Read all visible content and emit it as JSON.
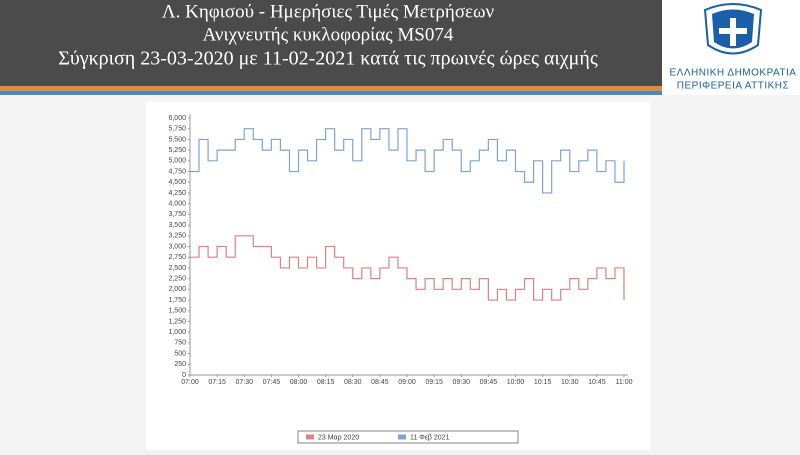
{
  "header": {
    "title_lines": [
      "Λ. Κηφισού - Ημερήσιες Τιμές Μετρήσεων",
      "Ανιχνευτής κυκλοφορίας MS074",
      "Σύγκριση 23-03-2020 με 11-02-2021 κατά τις πρωινές ώρες αιχμής"
    ]
  },
  "logo": {
    "lines": [
      "ΕΛΛΗΝΙΚΗ ΔΗΜΟΚΡΑΤΙΑ",
      "ΠΕΡΙΦΕΡΕΙΑ ΑΤΤΙΚΗΣ"
    ]
  },
  "chart_data": {
    "type": "line",
    "step": true,
    "grid": false,
    "x": [
      "07:00",
      "07:05",
      "07:10",
      "07:15",
      "07:20",
      "07:25",
      "07:30",
      "07:35",
      "07:40",
      "07:45",
      "07:50",
      "07:55",
      "08:00",
      "08:05",
      "08:10",
      "08:15",
      "08:20",
      "08:25",
      "08:30",
      "08:35",
      "08:40",
      "08:45",
      "08:50",
      "08:55",
      "09:00",
      "09:05",
      "09:10",
      "09:15",
      "09:20",
      "09:25",
      "09:30",
      "09:35",
      "09:40",
      "09:45",
      "09:50",
      "09:55",
      "10:00",
      "10:05",
      "10:10",
      "10:15",
      "10:20",
      "10:25",
      "10:30",
      "10:35",
      "10:40",
      "10:45",
      "10:50",
      "10:55",
      "11:00"
    ],
    "xlim": [
      "07:00",
      "11:00"
    ],
    "xticks": [
      "07:00",
      "07:15",
      "07:30",
      "07:45",
      "08:00",
      "08:15",
      "08:30",
      "08:45",
      "09:00",
      "09:15",
      "09:30",
      "09:45",
      "10:00",
      "10:15",
      "10:30",
      "10:45",
      "11:00"
    ],
    "ylim": [
      0,
      6000
    ],
    "yticks": [
      0,
      250,
      500,
      750,
      {
        "value": 1000,
        "label": "1,000"
      },
      {
        "value": 1250,
        "label": "1,250"
      },
      {
        "value": 1500,
        "label": "1,500"
      },
      {
        "value": 1750,
        "label": "1,750"
      },
      {
        "value": 2000,
        "label": "2,000"
      },
      {
        "value": 2250,
        "label": "2,250"
      },
      {
        "value": 2500,
        "label": "2,500"
      },
      {
        "value": 2750,
        "label": "2,750"
      },
      {
        "value": 3000,
        "label": "3,000"
      },
      {
        "value": 3250,
        "label": "3,250"
      },
      {
        "value": 3500,
        "label": "3,500"
      },
      {
        "value": 3750,
        "label": "3,750"
      },
      {
        "value": 4000,
        "label": "4,000"
      },
      {
        "value": 4250,
        "label": "4,250"
      },
      {
        "value": 4500,
        "label": "4,500"
      },
      {
        "value": 4750,
        "label": "4,750"
      },
      {
        "value": 5000,
        "label": "5,000"
      },
      {
        "value": 5250,
        "label": "5,250"
      },
      {
        "value": 5500,
        "label": "5,500"
      },
      {
        "value": 5750,
        "label": "5,750"
      },
      {
        "value": 6000,
        "label": "6,000"
      }
    ],
    "series": [
      {
        "name": "23 Μαρ 2020",
        "color": "#e08080",
        "values": [
          2750,
          3000,
          2750,
          3000,
          2750,
          3250,
          3250,
          3000,
          3000,
          2750,
          2500,
          2750,
          2500,
          2750,
          2500,
          3000,
          2750,
          2500,
          2250,
          2500,
          2250,
          2500,
          2750,
          2500,
          2250,
          2000,
          2250,
          2000,
          2250,
          2000,
          2250,
          2000,
          2250,
          1750,
          2000,
          1750,
          2000,
          2250,
          1750,
          2000,
          1750,
          2000,
          2250,
          2000,
          2250,
          2500,
          2250,
          2500,
          1750
        ]
      },
      {
        "name": "11 Φεβ 2021",
        "color": "#7fa3d6",
        "values": [
          4750,
          5500,
          5000,
          5250,
          5250,
          5500,
          5750,
          5500,
          5250,
          5500,
          5250,
          4750,
          5250,
          5000,
          5500,
          5750,
          5250,
          5500,
          5000,
          5750,
          5500,
          5750,
          5250,
          5750,
          5000,
          5250,
          4750,
          5250,
          5500,
          5250,
          4750,
          5000,
          5250,
          5500,
          5000,
          5250,
          4750,
          4500,
          5000,
          4250,
          5000,
          5250,
          4750,
          5000,
          5250,
          4750,
          5000,
          4500,
          5000
        ]
      }
    ]
  }
}
